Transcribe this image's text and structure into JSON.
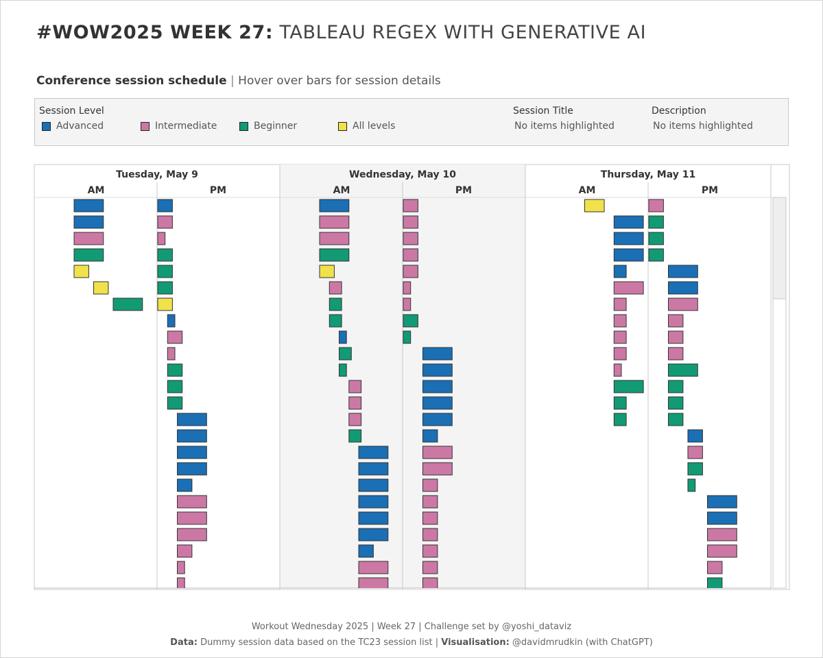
{
  "header": {
    "title_bold": "#WOW2025 WEEK 27:",
    "title_rest": "TABLEAU REGEX WITH GENERATIVE AI",
    "subtitle_bold": "Conference session schedule",
    "subtitle_sep": "|",
    "subtitle_rest": "Hover over bars for session details"
  },
  "legend": {
    "level_heading": "Session Level",
    "levels": [
      {
        "label": "Advanced",
        "color": "#1a6fb5"
      },
      {
        "label": "Intermediate",
        "color": "#cc78a5"
      },
      {
        "label": "Beginner",
        "color": "#129a74"
      },
      {
        "label": "All levels",
        "color": "#f0e24a"
      }
    ],
    "session_title_heading": "Session Title",
    "session_title_value": "No items highlighted",
    "description_heading": "Description",
    "description_value": "No items highlighted"
  },
  "chart_data": {
    "type": "bar",
    "title": "Conference session schedule",
    "description": "Gantt-style schedule; each bar is one session. start/end are hours into the half-day panel (AM panel 0-6, PM panel 0-6). Rows are listed in visual order from top.",
    "colors": {
      "A": "#1a6fb5",
      "I": "#cc78a5",
      "B": "#129a74",
      "L": "#f0e24a"
    },
    "level_names": {
      "A": "Advanced",
      "I": "Intermediate",
      "B": "Beginner",
      "L": "All levels"
    },
    "days": [
      {
        "label": "Tuesday, May 9",
        "am_label": "AM",
        "pm_label": "PM",
        "am": [
          {
            "r": 0,
            "s": 2.0,
            "e": 3.5,
            "l": "A"
          },
          {
            "r": 1,
            "s": 2.0,
            "e": 3.5,
            "l": "A"
          },
          {
            "r": 2,
            "s": 2.0,
            "e": 3.5,
            "l": "I"
          },
          {
            "r": 3,
            "s": 2.0,
            "e": 3.5,
            "l": "B"
          },
          {
            "r": 4,
            "s": 2.0,
            "e": 2.75,
            "l": "L"
          },
          {
            "r": 5,
            "s": 3.0,
            "e": 3.75,
            "l": "L"
          },
          {
            "r": 6,
            "s": 4.0,
            "e": 5.5,
            "l": "B"
          }
        ],
        "pm": [
          {
            "r": 0,
            "s": 0.0,
            "e": 0.75,
            "l": "A"
          },
          {
            "r": 1,
            "s": 0.0,
            "e": 0.75,
            "l": "I"
          },
          {
            "r": 2,
            "s": 0.0,
            "e": 0.375,
            "l": "I"
          },
          {
            "r": 3,
            "s": 0.0,
            "e": 0.75,
            "l": "B"
          },
          {
            "r": 4,
            "s": 0.0,
            "e": 0.75,
            "l": "B"
          },
          {
            "r": 5,
            "s": 0.0,
            "e": 0.75,
            "l": "B"
          },
          {
            "r": 6,
            "s": 0.0,
            "e": 0.75,
            "l": "L"
          },
          {
            "r": 7,
            "s": 0.5,
            "e": 0.875,
            "l": "A"
          },
          {
            "r": 8,
            "s": 0.5,
            "e": 1.25,
            "l": "I"
          },
          {
            "r": 9,
            "s": 0.5,
            "e": 0.875,
            "l": "I"
          },
          {
            "r": 10,
            "s": 0.5,
            "e": 1.25,
            "l": "B"
          },
          {
            "r": 11,
            "s": 0.5,
            "e": 1.25,
            "l": "B"
          },
          {
            "r": 12,
            "s": 0.5,
            "e": 1.25,
            "l": "B"
          },
          {
            "r": 13,
            "s": 1.0,
            "e": 2.5,
            "l": "A"
          },
          {
            "r": 14,
            "s": 1.0,
            "e": 2.5,
            "l": "A"
          },
          {
            "r": 15,
            "s": 1.0,
            "e": 2.5,
            "l": "A"
          },
          {
            "r": 16,
            "s": 1.0,
            "e": 2.5,
            "l": "A"
          },
          {
            "r": 17,
            "s": 1.0,
            "e": 1.75,
            "l": "A"
          },
          {
            "r": 18,
            "s": 1.0,
            "e": 2.5,
            "l": "I"
          },
          {
            "r": 19,
            "s": 1.0,
            "e": 2.5,
            "l": "I"
          },
          {
            "r": 20,
            "s": 1.0,
            "e": 2.5,
            "l": "I"
          },
          {
            "r": 21,
            "s": 1.0,
            "e": 1.75,
            "l": "I"
          },
          {
            "r": 22,
            "s": 1.0,
            "e": 1.375,
            "l": "I"
          },
          {
            "r": 23,
            "s": 1.0,
            "e": 1.375,
            "l": "I"
          }
        ]
      },
      {
        "label": "Wednesday, May 10",
        "am_label": "AM",
        "pm_label": "PM",
        "am": [
          {
            "r": 0,
            "s": 2.0,
            "e": 3.5,
            "l": "A"
          },
          {
            "r": 1,
            "s": 2.0,
            "e": 3.5,
            "l": "I"
          },
          {
            "r": 2,
            "s": 2.0,
            "e": 3.5,
            "l": "I"
          },
          {
            "r": 3,
            "s": 2.0,
            "e": 3.5,
            "l": "B"
          },
          {
            "r": 4,
            "s": 2.0,
            "e": 2.75,
            "l": "L"
          },
          {
            "r": 5,
            "s": 2.5,
            "e": 3.125,
            "l": "I"
          },
          {
            "r": 6,
            "s": 2.5,
            "e": 3.125,
            "l": "B"
          },
          {
            "r": 7,
            "s": 2.5,
            "e": 3.125,
            "l": "B"
          },
          {
            "r": 8,
            "s": 3.0,
            "e": 3.375,
            "l": "A"
          },
          {
            "r": 9,
            "s": 3.0,
            "e": 3.625,
            "l": "B"
          },
          {
            "r": 10,
            "s": 3.0,
            "e": 3.375,
            "l": "B"
          },
          {
            "r": 11,
            "s": 3.5,
            "e": 4.125,
            "l": "I"
          },
          {
            "r": 12,
            "s": 3.5,
            "e": 4.125,
            "l": "I"
          },
          {
            "r": 13,
            "s": 3.5,
            "e": 4.125,
            "l": "I"
          },
          {
            "r": 14,
            "s": 3.5,
            "e": 4.125,
            "l": "B"
          },
          {
            "r": 15,
            "s": 4.0,
            "e": 5.5,
            "l": "A"
          },
          {
            "r": 16,
            "s": 4.0,
            "e": 5.5,
            "l": "A"
          },
          {
            "r": 17,
            "s": 4.0,
            "e": 5.5,
            "l": "A"
          },
          {
            "r": 18,
            "s": 4.0,
            "e": 5.5,
            "l": "A"
          },
          {
            "r": 19,
            "s": 4.0,
            "e": 5.5,
            "l": "A"
          },
          {
            "r": 20,
            "s": 4.0,
            "e": 5.5,
            "l": "A"
          },
          {
            "r": 21,
            "s": 4.0,
            "e": 4.75,
            "l": "A"
          },
          {
            "r": 22,
            "s": 4.0,
            "e": 5.5,
            "l": "I"
          },
          {
            "r": 23,
            "s": 4.0,
            "e": 5.5,
            "l": "I"
          }
        ],
        "pm": [
          {
            "r": 0,
            "s": 0.0,
            "e": 0.75,
            "l": "I"
          },
          {
            "r": 1,
            "s": 0.0,
            "e": 0.75,
            "l": "I"
          },
          {
            "r": 2,
            "s": 0.0,
            "e": 0.75,
            "l": "I"
          },
          {
            "r": 3,
            "s": 0.0,
            "e": 0.75,
            "l": "I"
          },
          {
            "r": 4,
            "s": 0.0,
            "e": 0.75,
            "l": "I"
          },
          {
            "r": 5,
            "s": 0.0,
            "e": 0.375,
            "l": "I"
          },
          {
            "r": 6,
            "s": 0.0,
            "e": 0.375,
            "l": "I"
          },
          {
            "r": 7,
            "s": 0.0,
            "e": 0.75,
            "l": "B"
          },
          {
            "r": 8,
            "s": 0.0,
            "e": 0.375,
            "l": "B"
          },
          {
            "r": 9,
            "s": 1.0,
            "e": 2.5,
            "l": "A"
          },
          {
            "r": 10,
            "s": 1.0,
            "e": 2.5,
            "l": "A"
          },
          {
            "r": 11,
            "s": 1.0,
            "e": 2.5,
            "l": "A"
          },
          {
            "r": 12,
            "s": 1.0,
            "e": 2.5,
            "l": "A"
          },
          {
            "r": 13,
            "s": 1.0,
            "e": 2.5,
            "l": "A"
          },
          {
            "r": 14,
            "s": 1.0,
            "e": 1.75,
            "l": "A"
          },
          {
            "r": 15,
            "s": 1.0,
            "e": 2.5,
            "l": "I"
          },
          {
            "r": 16,
            "s": 1.0,
            "e": 2.5,
            "l": "I"
          },
          {
            "r": 17,
            "s": 1.0,
            "e": 1.75,
            "l": "I"
          },
          {
            "r": 18,
            "s": 1.0,
            "e": 1.75,
            "l": "I"
          },
          {
            "r": 19,
            "s": 1.0,
            "e": 1.75,
            "l": "I"
          },
          {
            "r": 20,
            "s": 1.0,
            "e": 1.75,
            "l": "I"
          },
          {
            "r": 21,
            "s": 1.0,
            "e": 1.75,
            "l": "I"
          },
          {
            "r": 22,
            "s": 1.0,
            "e": 1.75,
            "l": "I"
          },
          {
            "r": 23,
            "s": 1.0,
            "e": 1.75,
            "l": "I"
          }
        ]
      },
      {
        "label": "Thursday, May 11",
        "am_label": "AM",
        "pm_label": "PM",
        "am": [
          {
            "r": 0,
            "s": 3.0,
            "e": 4.0,
            "l": "L"
          },
          {
            "r": 1,
            "s": 4.5,
            "e": 6.0,
            "l": "A"
          },
          {
            "r": 2,
            "s": 4.5,
            "e": 6.0,
            "l": "A"
          },
          {
            "r": 3,
            "s": 4.5,
            "e": 6.0,
            "l": "A"
          },
          {
            "r": 4,
            "s": 4.5,
            "e": 5.125,
            "l": "A"
          },
          {
            "r": 5,
            "s": 4.5,
            "e": 6.0,
            "l": "I"
          },
          {
            "r": 6,
            "s": 4.5,
            "e": 5.125,
            "l": "I"
          },
          {
            "r": 7,
            "s": 4.5,
            "e": 5.125,
            "l": "I"
          },
          {
            "r": 8,
            "s": 4.5,
            "e": 5.125,
            "l": "I"
          },
          {
            "r": 9,
            "s": 4.5,
            "e": 5.125,
            "l": "I"
          },
          {
            "r": 10,
            "s": 4.5,
            "e": 4.875,
            "l": "I"
          },
          {
            "r": 11,
            "s": 4.5,
            "e": 6.0,
            "l": "B"
          },
          {
            "r": 12,
            "s": 4.5,
            "e": 5.125,
            "l": "B"
          },
          {
            "r": 13,
            "s": 4.5,
            "e": 5.125,
            "l": "B"
          }
        ],
        "pm": [
          {
            "r": 0,
            "s": 0.0,
            "e": 0.75,
            "l": "I"
          },
          {
            "r": 1,
            "s": 0.0,
            "e": 0.75,
            "l": "B"
          },
          {
            "r": 2,
            "s": 0.0,
            "e": 0.75,
            "l": "B"
          },
          {
            "r": 3,
            "s": 0.0,
            "e": 0.75,
            "l": "B"
          },
          {
            "r": 4,
            "s": 1.0,
            "e": 2.5,
            "l": "A"
          },
          {
            "r": 5,
            "s": 1.0,
            "e": 2.5,
            "l": "A"
          },
          {
            "r": 6,
            "s": 1.0,
            "e": 2.5,
            "l": "I"
          },
          {
            "r": 7,
            "s": 1.0,
            "e": 1.75,
            "l": "I"
          },
          {
            "r": 8,
            "s": 1.0,
            "e": 1.75,
            "l": "I"
          },
          {
            "r": 9,
            "s": 1.0,
            "e": 1.75,
            "l": "I"
          },
          {
            "r": 10,
            "s": 1.0,
            "e": 2.5,
            "l": "B"
          },
          {
            "r": 11,
            "s": 1.0,
            "e": 1.75,
            "l": "B"
          },
          {
            "r": 12,
            "s": 1.0,
            "e": 1.75,
            "l": "B"
          },
          {
            "r": 13,
            "s": 1.0,
            "e": 1.75,
            "l": "B"
          },
          {
            "r": 14,
            "s": 2.0,
            "e": 2.75,
            "l": "A"
          },
          {
            "r": 15,
            "s": 2.0,
            "e": 2.75,
            "l": "I"
          },
          {
            "r": 16,
            "s": 2.0,
            "e": 2.75,
            "l": "B"
          },
          {
            "r": 17,
            "s": 2.0,
            "e": 2.375,
            "l": "B"
          },
          {
            "r": 18,
            "s": 3.0,
            "e": 4.5,
            "l": "A"
          },
          {
            "r": 19,
            "s": 3.0,
            "e": 4.5,
            "l": "A"
          },
          {
            "r": 20,
            "s": 3.0,
            "e": 4.5,
            "l": "I"
          },
          {
            "r": 21,
            "s": 3.0,
            "e": 4.5,
            "l": "I"
          },
          {
            "r": 22,
            "s": 3.0,
            "e": 3.75,
            "l": "I"
          },
          {
            "r": 23,
            "s": 3.0,
            "e": 3.75,
            "l": "B"
          }
        ]
      }
    ]
  },
  "footer": {
    "line1": "Workout Wednesday 2025 | Week 27 | Challenge set by @yoshi_dataviz",
    "data_label": "Data:",
    "data_text": "Dummy session data based on the TC23 session list",
    "sep": "|",
    "vis_label": "Visualisation:",
    "vis_text": "@davidmrudkin (with ChatGPT)"
  }
}
